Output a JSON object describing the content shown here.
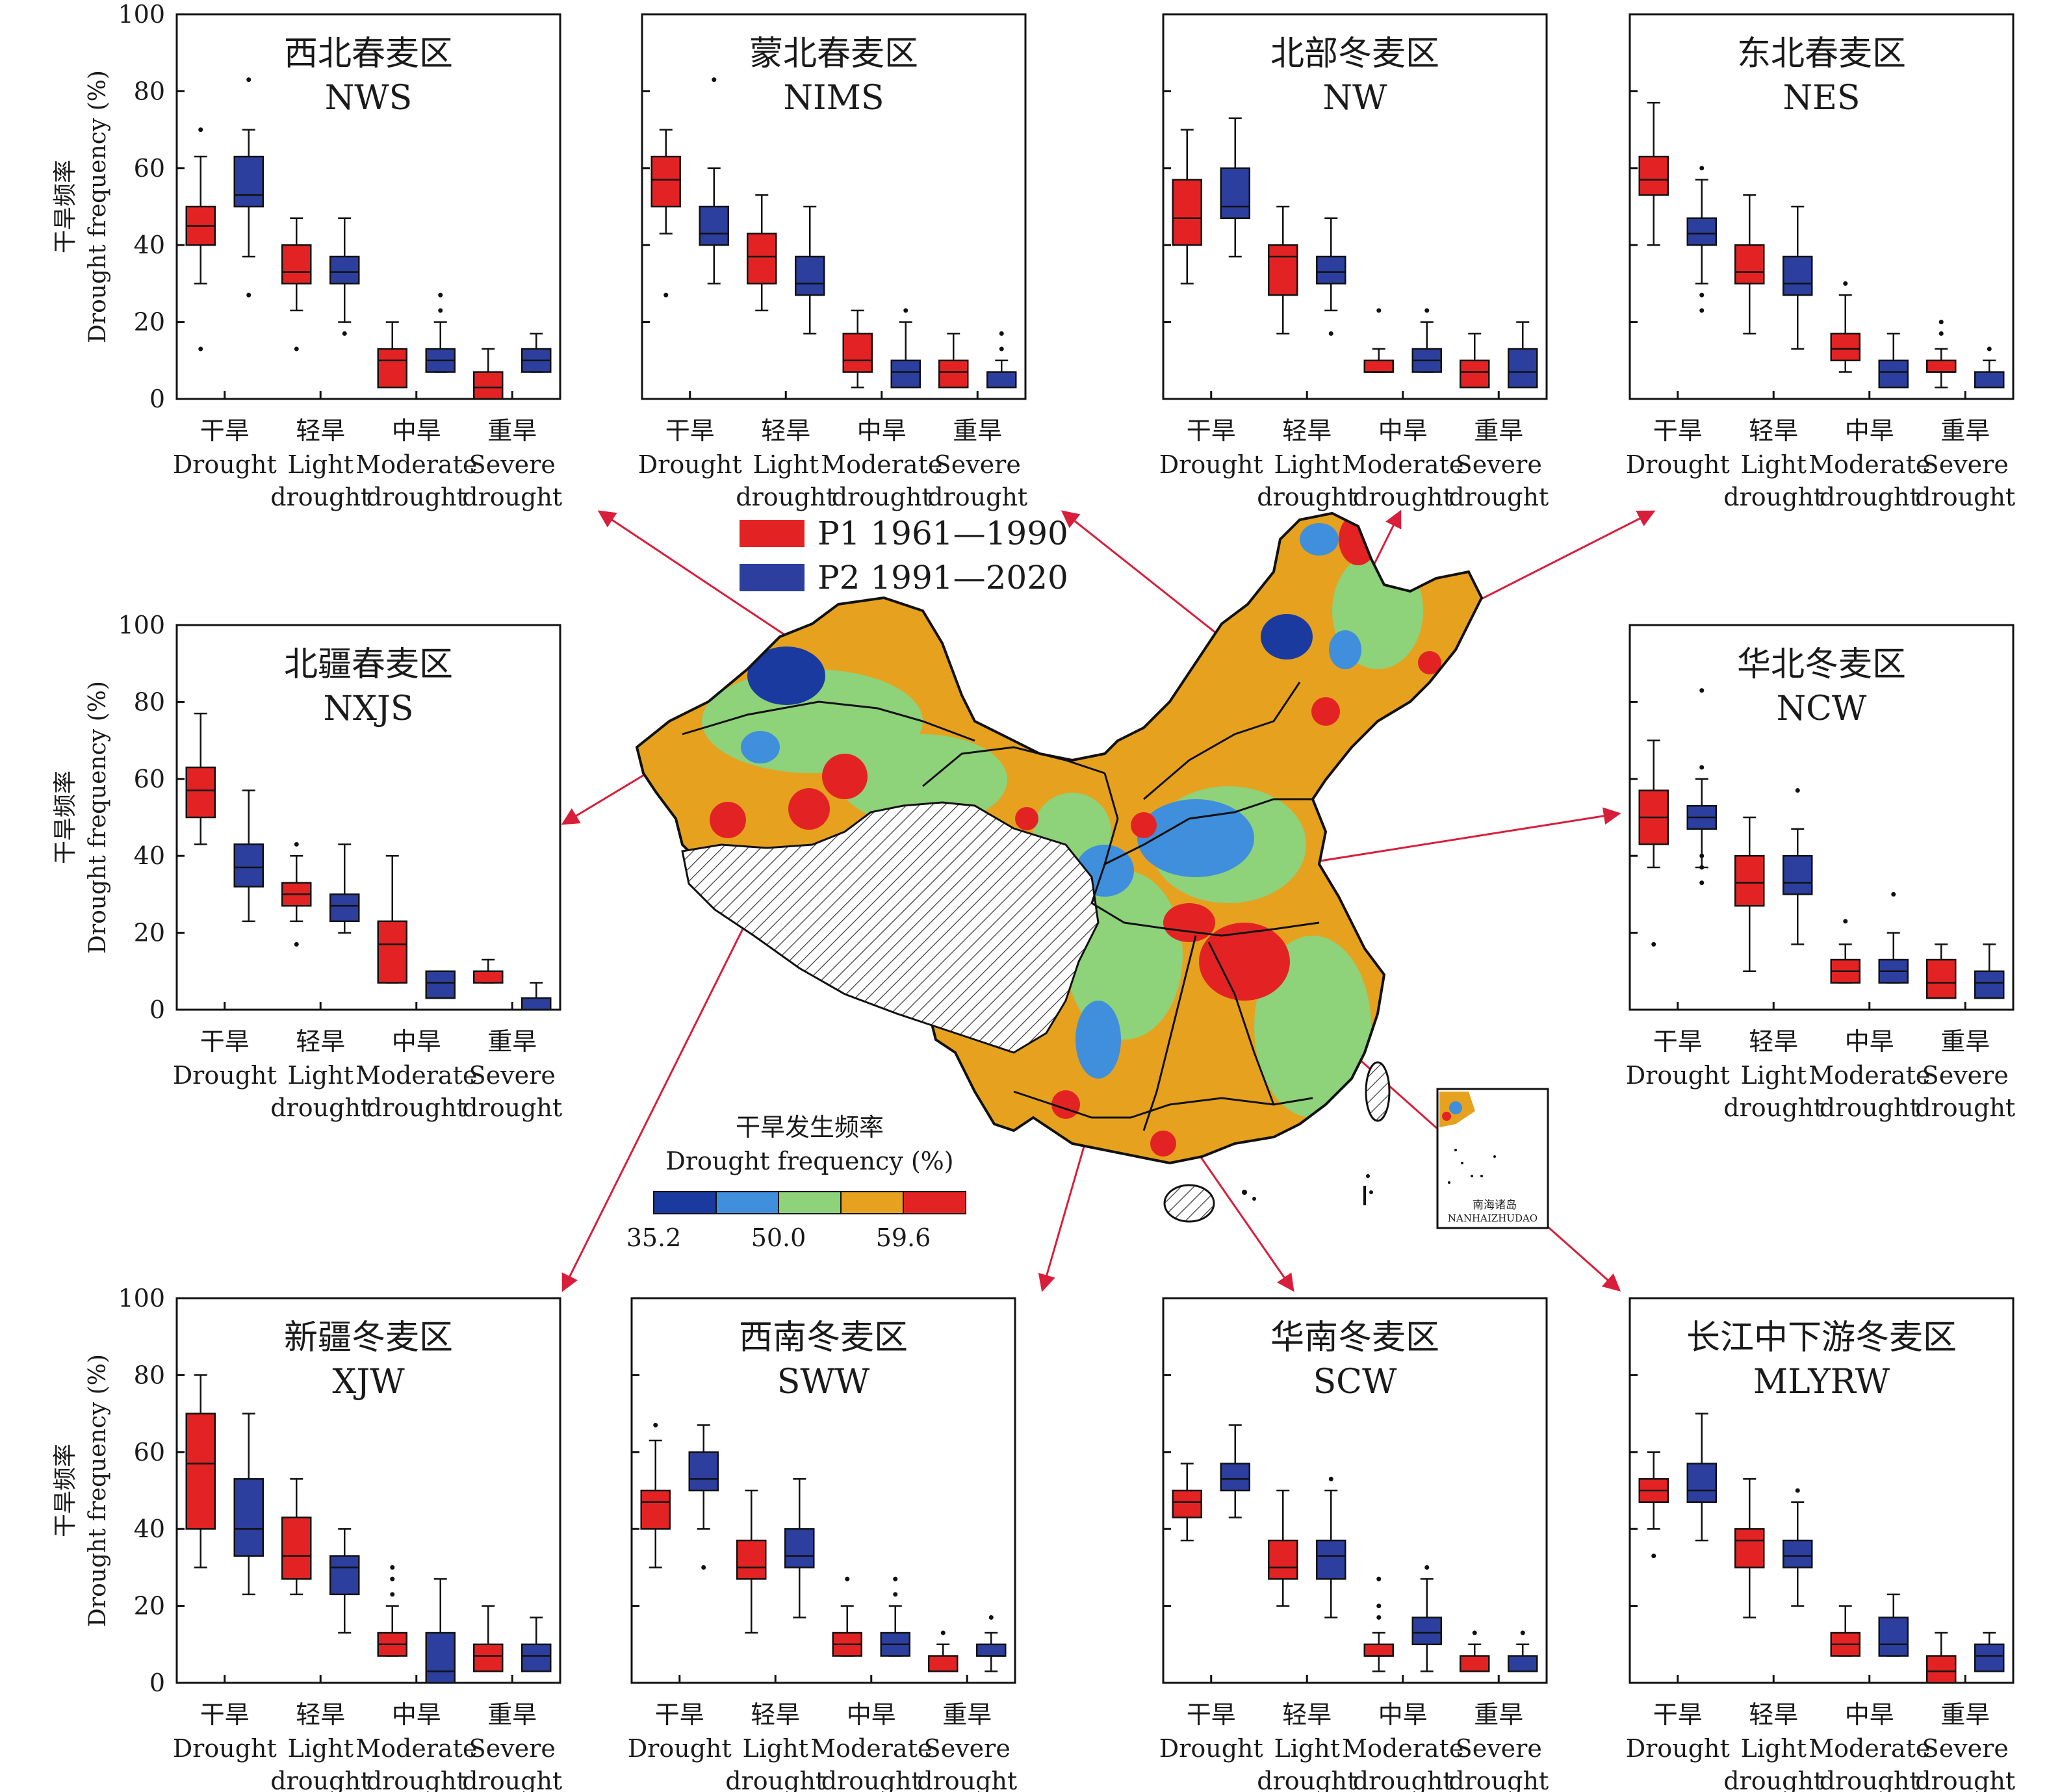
{
  "legend": {
    "p1_label": "P1 1961—1990",
    "p2_label": "P2 1991—2020",
    "p1_color": "#e32323",
    "p2_color": "#2c3f9e"
  },
  "map": {
    "colorbar_title_cn": "干旱发生频率",
    "colorbar_title_en": "Drought frequency (%)",
    "colorbar_ticks": [
      "35.2",
      "50.0",
      "59.6"
    ],
    "colorbar_colors": [
      "#1a3aa0",
      "#3f8fdc",
      "#8ed27a",
      "#e6a21e",
      "#e32323"
    ],
    "inset_label_cn": "南海诸岛",
    "inset_label_en": "NANHAIZHUDAO"
  },
  "axis": {
    "ylabel_cn": "干旱频率",
    "ylabel_en": "Drought frequency (%)",
    "yticks": [
      "0",
      "20",
      "40",
      "60",
      "80",
      "100"
    ],
    "categories": [
      {
        "cn": "干旱",
        "en1": "Drought",
        "en2": ""
      },
      {
        "cn": "轻旱",
        "en1": "Light",
        "en2": "drought"
      },
      {
        "cn": "中旱",
        "en1": "Moderate",
        "en2": "drought"
      },
      {
        "cn": "重旱",
        "en1": "Severe",
        "en2": "drought"
      }
    ]
  },
  "chart_data": {
    "type": "box",
    "ylim": [
      0,
      100
    ],
    "panels": [
      {
        "id": "NWS",
        "title_cn": "西北春麦区",
        "title_en": "NWS",
        "p1": [
          [
            30,
            40,
            45,
            50,
            63
          ],
          [
            23,
            30,
            33,
            40,
            47
          ],
          [
            3,
            3,
            10,
            13,
            20
          ],
          [
            0,
            0,
            3,
            7,
            13
          ]
        ],
        "p2": [
          [
            37,
            50,
            53,
            63,
            70
          ],
          [
            20,
            30,
            33,
            37,
            47
          ],
          [
            7,
            7,
            10,
            13,
            20
          ],
          [
            7,
            7,
            10,
            13,
            17
          ]
        ],
        "p1_out": [
          [
            13,
            70
          ],
          [
            13
          ],
          [],
          []
        ],
        "p2_out": [
          [
            27,
            83
          ],
          [
            17
          ],
          [
            23,
            27
          ],
          []
        ]
      },
      {
        "id": "NIMS",
        "title_cn": "蒙北春麦区",
        "title_en": "NIMS",
        "p1": [
          [
            43,
            50,
            57,
            63,
            70
          ],
          [
            23,
            30,
            37,
            43,
            53
          ],
          [
            3,
            7,
            10,
            17,
            23
          ],
          [
            3,
            3,
            7,
            10,
            17
          ]
        ],
        "p2": [
          [
            30,
            40,
            43,
            50,
            60
          ],
          [
            17,
            27,
            30,
            37,
            50
          ],
          [
            3,
            3,
            7,
            10,
            20
          ],
          [
            3,
            3,
            3,
            7,
            10
          ]
        ],
        "p1_out": [
          [
            27
          ],
          [],
          [],
          []
        ],
        "p2_out": [
          [
            83
          ],
          [],
          [
            23
          ],
          [
            13,
            17
          ]
        ]
      },
      {
        "id": "NW",
        "title_cn": "北部冬麦区",
        "title_en": "NW",
        "p1": [
          [
            30,
            40,
            47,
            57,
            70
          ],
          [
            17,
            27,
            37,
            40,
            50
          ],
          [
            7,
            7,
            7,
            10,
            13
          ],
          [
            3,
            3,
            7,
            10,
            17
          ]
        ],
        "p2": [
          [
            37,
            47,
            50,
            60,
            73
          ],
          [
            23,
            30,
            33,
            37,
            47
          ],
          [
            7,
            7,
            10,
            13,
            20
          ],
          [
            3,
            3,
            7,
            13,
            20
          ]
        ],
        "p1_out": [
          [],
          [],
          [
            23
          ],
          []
        ],
        "p2_out": [
          [],
          [
            17
          ],
          [
            23
          ],
          []
        ]
      },
      {
        "id": "NES",
        "title_cn": "东北春麦区",
        "title_en": "NES",
        "p1": [
          [
            40,
            53,
            57,
            63,
            77
          ],
          [
            17,
            30,
            33,
            40,
            53
          ],
          [
            7,
            10,
            13,
            17,
            27
          ],
          [
            3,
            7,
            7,
            10,
            13
          ]
        ],
        "p2": [
          [
            30,
            40,
            43,
            47,
            57
          ],
          [
            13,
            27,
            30,
            37,
            50
          ],
          [
            3,
            3,
            7,
            10,
            17
          ],
          [
            3,
            3,
            3,
            7,
            10
          ]
        ],
        "p1_out": [
          [],
          [],
          [
            30
          ],
          [
            17,
            20
          ]
        ],
        "p2_out": [
          [
            23,
            27,
            60
          ],
          [],
          [],
          [
            13
          ]
        ]
      },
      {
        "id": "NXJS",
        "title_cn": "北疆春麦区",
        "title_en": "NXJS",
        "p1": [
          [
            43,
            50,
            57,
            63,
            77
          ],
          [
            23,
            27,
            30,
            33,
            40
          ],
          [
            7,
            7,
            17,
            23,
            40
          ],
          [
            7,
            7,
            10,
            10,
            13
          ]
        ],
        "p2": [
          [
            23,
            32,
            37,
            43,
            57
          ],
          [
            20,
            23,
            27,
            30,
            43
          ],
          [
            3,
            3,
            7,
            10,
            10
          ],
          [
            0,
            0,
            0,
            3,
            7
          ]
        ],
        "p1_out": [
          [],
          [
            17,
            43
          ],
          [],
          []
        ],
        "p2_out": [
          [],
          [],
          [],
          []
        ]
      },
      {
        "id": "NCW",
        "title_cn": "华北冬麦区",
        "title_en": "NCW",
        "p1": [
          [
            37,
            43,
            50,
            57,
            70
          ],
          [
            10,
            27,
            33,
            40,
            50
          ],
          [
            7,
            7,
            10,
            13,
            17
          ],
          [
            3,
            3,
            7,
            13,
            17
          ]
        ],
        "p2": [
          [
            37,
            47,
            50,
            53,
            60
          ],
          [
            17,
            30,
            33,
            40,
            47
          ],
          [
            7,
            7,
            10,
            13,
            20
          ],
          [
            3,
            3,
            7,
            10,
            17
          ]
        ],
        "p1_out": [
          [
            17
          ],
          [],
          [
            23
          ],
          []
        ],
        "p2_out": [
          [
            33,
            37,
            40,
            63,
            83
          ],
          [
            57
          ],
          [
            30
          ],
          []
        ]
      },
      {
        "id": "XJW",
        "title_cn": "新疆冬麦区",
        "title_en": "XJW",
        "p1": [
          [
            30,
            40,
            57,
            70,
            80
          ],
          [
            23,
            27,
            33,
            43,
            53
          ],
          [
            7,
            7,
            10,
            13,
            20
          ],
          [
            3,
            3,
            7,
            10,
            20
          ]
        ],
        "p2": [
          [
            23,
            33,
            40,
            53,
            70
          ],
          [
            13,
            23,
            30,
            33,
            40
          ],
          [
            0,
            0,
            3,
            13,
            27
          ],
          [
            3,
            3,
            7,
            10,
            17
          ]
        ],
        "p1_out": [
          [],
          [],
          [
            23,
            27,
            30
          ],
          []
        ],
        "p2_out": [
          [],
          [],
          [],
          []
        ]
      },
      {
        "id": "SWW",
        "title_cn": "西南冬麦区",
        "title_en": "SWW",
        "p1": [
          [
            30,
            40,
            47,
            50,
            63
          ],
          [
            13,
            27,
            30,
            37,
            50
          ],
          [
            7,
            7,
            10,
            13,
            20
          ],
          [
            3,
            3,
            3,
            7,
            10
          ]
        ],
        "p2": [
          [
            40,
            50,
            53,
            60,
            67
          ],
          [
            17,
            30,
            33,
            40,
            53
          ],
          [
            7,
            7,
            10,
            13,
            20
          ],
          [
            3,
            7,
            7,
            10,
            13
          ]
        ],
        "p1_out": [
          [
            67
          ],
          [],
          [
            27
          ],
          [
            13
          ]
        ],
        "p2_out": [
          [
            30
          ],
          [],
          [
            23,
            27
          ],
          [
            17
          ]
        ]
      },
      {
        "id": "SCW",
        "title_cn": "华南冬麦区",
        "title_en": "SCW",
        "p1": [
          [
            37,
            43,
            47,
            50,
            57
          ],
          [
            20,
            27,
            30,
            37,
            50
          ],
          [
            3,
            7,
            7,
            10,
            13
          ],
          [
            3,
            3,
            3,
            7,
            10
          ]
        ],
        "p2": [
          [
            43,
            50,
            53,
            57,
            67
          ],
          [
            17,
            27,
            33,
            37,
            50
          ],
          [
            3,
            10,
            13,
            17,
            27
          ],
          [
            3,
            3,
            3,
            7,
            10
          ]
        ],
        "p1_out": [
          [],
          [],
          [
            17,
            20,
            27
          ],
          [
            13
          ]
        ],
        "p2_out": [
          [],
          [
            53
          ],
          [
            30
          ],
          [
            13
          ]
        ]
      },
      {
        "id": "MLYRW",
        "title_cn": "长江中下游冬麦区",
        "title_en": "MLYRW",
        "p1": [
          [
            40,
            47,
            50,
            53,
            60
          ],
          [
            17,
            30,
            37,
            40,
            53
          ],
          [
            7,
            7,
            10,
            13,
            20
          ],
          [
            0,
            0,
            3,
            7,
            13
          ]
        ],
        "p2": [
          [
            37,
            47,
            50,
            57,
            70
          ],
          [
            20,
            30,
            33,
            37,
            47
          ],
          [
            7,
            7,
            10,
            17,
            23
          ],
          [
            3,
            3,
            7,
            10,
            13
          ]
        ],
        "p1_out": [
          [
            33
          ],
          [],
          [],
          []
        ],
        "p2_out": [
          [],
          [
            50
          ],
          [],
          []
        ]
      }
    ]
  }
}
